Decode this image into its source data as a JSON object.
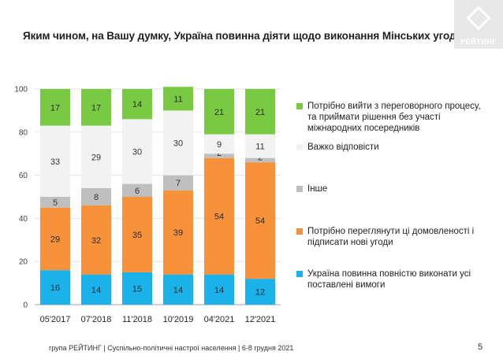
{
  "title": "Яким чином, на Вашу думку, Україна повинна діяти щодо виконання Мінських угод?",
  "logo_text": "РЕЙТИНГ",
  "footer": "група РЕЙТИНГ | Суспільно-політичні настрої населення  | 6-8 грудня 2021",
  "page_number": "5",
  "colors": {
    "exit": "#7ac943",
    "hard": "#f2f2f2",
    "other": "#bfbfbf",
    "revise": "#f7923a",
    "fulfill": "#1ab2e8"
  },
  "chart_data": {
    "type": "bar",
    "stacked": true,
    "categories": [
      "05'2017",
      "07'2018",
      "11'2018",
      "10'2019",
      "04'2021",
      "12'2021"
    ],
    "ylim": [
      0,
      100
    ],
    "yticks": [
      "0",
      "20",
      "40",
      "60",
      "80",
      "100"
    ],
    "series": [
      {
        "key": "fulfill",
        "name": "Україна повинна повністю виконати усі поставлені вимоги",
        "values": [
          16,
          14,
          15,
          14,
          14,
          12
        ]
      },
      {
        "key": "revise",
        "name": "Потрібно переглянути ці домовленості і підписати нові угоди",
        "values": [
          29,
          32,
          35,
          39,
          54,
          54
        ]
      },
      {
        "key": "other",
        "name": "Інше",
        "values": [
          5,
          8,
          6,
          7,
          2,
          2
        ]
      },
      {
        "key": "hard",
        "name": "Важко відповісти",
        "values": [
          33,
          29,
          30,
          30,
          9,
          11
        ]
      },
      {
        "key": "exit",
        "name": "Потрібно вийти з переговорного процесу, та приймати рішення без участі міжнародних посередників",
        "values": [
          17,
          17,
          14,
          11,
          21,
          21
        ]
      }
    ]
  }
}
